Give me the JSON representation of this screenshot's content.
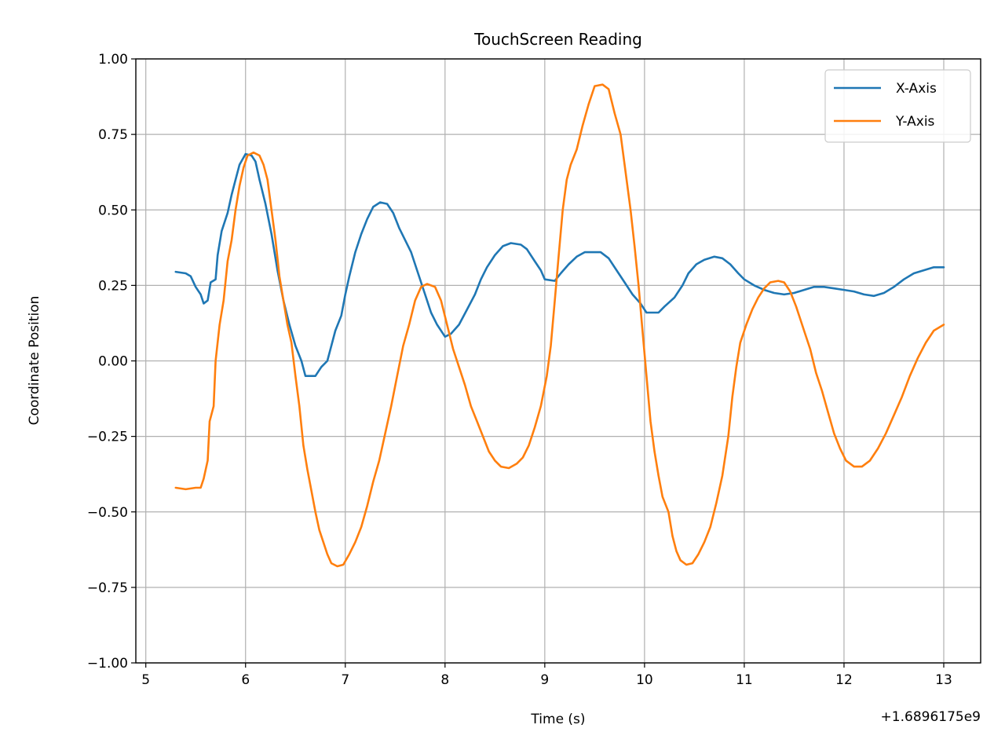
{
  "chart_data": {
    "type": "line",
    "title": "TouchScreen Reading",
    "xlabel": "Time (s)",
    "ylabel": "Coordinate Position",
    "x_offset_label": "+1.6896175e9",
    "xlim": [
      4.9,
      13.37
    ],
    "ylim": [
      -1.0,
      1.0
    ],
    "x_ticks": [
      5,
      6,
      7,
      8,
      9,
      10,
      11,
      12,
      13
    ],
    "x_tick_labels": [
      "5",
      "6",
      "7",
      "8",
      "9",
      "10",
      "11",
      "12",
      "13"
    ],
    "y_ticks": [
      -1.0,
      -0.75,
      -0.5,
      -0.25,
      0.0,
      0.25,
      0.5,
      0.75,
      1.0
    ],
    "y_tick_labels": [
      "−1.00",
      "−0.75",
      "−0.50",
      "−0.25",
      "0.00",
      "0.25",
      "0.50",
      "0.75",
      "1.00"
    ],
    "grid": true,
    "legend_position": "top-right",
    "series": [
      {
        "name": "X-Axis",
        "color": "#1f77b4",
        "points": [
          [
            5.3,
            0.295
          ],
          [
            5.4,
            0.29
          ],
          [
            5.45,
            0.28
          ],
          [
            5.5,
            0.245
          ],
          [
            5.55,
            0.22
          ],
          [
            5.58,
            0.19
          ],
          [
            5.62,
            0.2
          ],
          [
            5.65,
            0.26
          ],
          [
            5.7,
            0.27
          ],
          [
            5.72,
            0.35
          ],
          [
            5.76,
            0.43
          ],
          [
            5.82,
            0.49
          ],
          [
            5.86,
            0.55
          ],
          [
            5.9,
            0.6
          ],
          [
            5.94,
            0.65
          ],
          [
            6.0,
            0.685
          ],
          [
            6.06,
            0.68
          ],
          [
            6.1,
            0.66
          ],
          [
            6.14,
            0.6
          ],
          [
            6.2,
            0.52
          ],
          [
            6.26,
            0.42
          ],
          [
            6.32,
            0.3
          ],
          [
            6.38,
            0.2
          ],
          [
            6.44,
            0.12
          ],
          [
            6.5,
            0.05
          ],
          [
            6.56,
            0.0
          ],
          [
            6.6,
            -0.05
          ],
          [
            6.7,
            -0.05
          ],
          [
            6.76,
            -0.02
          ],
          [
            6.82,
            0.0
          ],
          [
            6.86,
            0.05
          ],
          [
            6.9,
            0.1
          ],
          [
            6.96,
            0.15
          ],
          [
            7.0,
            0.22
          ],
          [
            7.04,
            0.28
          ],
          [
            7.1,
            0.36
          ],
          [
            7.16,
            0.42
          ],
          [
            7.22,
            0.47
          ],
          [
            7.28,
            0.51
          ],
          [
            7.35,
            0.525
          ],
          [
            7.42,
            0.52
          ],
          [
            7.48,
            0.49
          ],
          [
            7.54,
            0.44
          ],
          [
            7.6,
            0.4
          ],
          [
            7.66,
            0.36
          ],
          [
            7.72,
            0.3
          ],
          [
            7.8,
            0.22
          ],
          [
            7.86,
            0.16
          ],
          [
            7.92,
            0.12
          ],
          [
            8.0,
            0.08
          ],
          [
            8.06,
            0.09
          ],
          [
            8.14,
            0.12
          ],
          [
            8.22,
            0.17
          ],
          [
            8.3,
            0.22
          ],
          [
            8.36,
            0.27
          ],
          [
            8.42,
            0.31
          ],
          [
            8.5,
            0.35
          ],
          [
            8.58,
            0.38
          ],
          [
            8.66,
            0.39
          ],
          [
            8.76,
            0.385
          ],
          [
            8.82,
            0.37
          ],
          [
            8.9,
            0.33
          ],
          [
            8.96,
            0.3
          ],
          [
            9.0,
            0.27
          ],
          [
            9.1,
            0.265
          ],
          [
            9.16,
            0.29
          ],
          [
            9.24,
            0.32
          ],
          [
            9.32,
            0.345
          ],
          [
            9.4,
            0.36
          ],
          [
            9.56,
            0.36
          ],
          [
            9.64,
            0.34
          ],
          [
            9.72,
            0.3
          ],
          [
            9.8,
            0.26
          ],
          [
            9.88,
            0.22
          ],
          [
            9.96,
            0.19
          ],
          [
            10.02,
            0.16
          ],
          [
            10.14,
            0.16
          ],
          [
            10.2,
            0.18
          ],
          [
            10.3,
            0.21
          ],
          [
            10.38,
            0.25
          ],
          [
            10.44,
            0.29
          ],
          [
            10.52,
            0.32
          ],
          [
            10.6,
            0.335
          ],
          [
            10.7,
            0.345
          ],
          [
            10.78,
            0.34
          ],
          [
            10.86,
            0.32
          ],
          [
            10.94,
            0.29
          ],
          [
            11.0,
            0.27
          ],
          [
            11.1,
            0.25
          ],
          [
            11.2,
            0.235
          ],
          [
            11.3,
            0.225
          ],
          [
            11.4,
            0.22
          ],
          [
            11.5,
            0.225
          ],
          [
            11.6,
            0.235
          ],
          [
            11.7,
            0.245
          ],
          [
            11.8,
            0.245
          ],
          [
            11.9,
            0.24
          ],
          [
            12.0,
            0.235
          ],
          [
            12.1,
            0.23
          ],
          [
            12.2,
            0.22
          ],
          [
            12.3,
            0.215
          ],
          [
            12.4,
            0.225
          ],
          [
            12.5,
            0.245
          ],
          [
            12.6,
            0.27
          ],
          [
            12.7,
            0.29
          ],
          [
            12.8,
            0.3
          ],
          [
            12.9,
            0.31
          ],
          [
            13.0,
            0.31
          ]
        ]
      },
      {
        "name": "Y-Axis",
        "color": "#ff7f0e",
        "points": [
          [
            5.3,
            -0.42
          ],
          [
            5.4,
            -0.425
          ],
          [
            5.5,
            -0.42
          ],
          [
            5.55,
            -0.42
          ],
          [
            5.58,
            -0.39
          ],
          [
            5.62,
            -0.33
          ],
          [
            5.64,
            -0.2
          ],
          [
            5.68,
            -0.15
          ],
          [
            5.7,
            0.0
          ],
          [
            5.74,
            0.12
          ],
          [
            5.78,
            0.2
          ],
          [
            5.82,
            0.33
          ],
          [
            5.86,
            0.4
          ],
          [
            5.9,
            0.5
          ],
          [
            5.94,
            0.58
          ],
          [
            5.98,
            0.64
          ],
          [
            6.02,
            0.68
          ],
          [
            6.08,
            0.69
          ],
          [
            6.14,
            0.68
          ],
          [
            6.18,
            0.65
          ],
          [
            6.22,
            0.6
          ],
          [
            6.26,
            0.5
          ],
          [
            6.3,
            0.4
          ],
          [
            6.34,
            0.28
          ],
          [
            6.38,
            0.2
          ],
          [
            6.42,
            0.12
          ],
          [
            6.46,
            0.06
          ],
          [
            6.5,
            -0.05
          ],
          [
            6.54,
            -0.15
          ],
          [
            6.58,
            -0.28
          ],
          [
            6.62,
            -0.36
          ],
          [
            6.66,
            -0.43
          ],
          [
            6.7,
            -0.5
          ],
          [
            6.74,
            -0.56
          ],
          [
            6.78,
            -0.6
          ],
          [
            6.82,
            -0.64
          ],
          [
            6.86,
            -0.67
          ],
          [
            6.92,
            -0.68
          ],
          [
            6.98,
            -0.675
          ],
          [
            7.04,
            -0.64
          ],
          [
            7.1,
            -0.6
          ],
          [
            7.16,
            -0.55
          ],
          [
            7.22,
            -0.48
          ],
          [
            7.28,
            -0.4
          ],
          [
            7.34,
            -0.33
          ],
          [
            7.4,
            -0.24
          ],
          [
            7.46,
            -0.15
          ],
          [
            7.52,
            -0.05
          ],
          [
            7.58,
            0.05
          ],
          [
            7.64,
            0.12
          ],
          [
            7.7,
            0.2
          ],
          [
            7.76,
            0.245
          ],
          [
            7.82,
            0.255
          ],
          [
            7.9,
            0.245
          ],
          [
            7.96,
            0.2
          ],
          [
            8.02,
            0.12
          ],
          [
            8.08,
            0.04
          ],
          [
            8.14,
            -0.02
          ],
          [
            8.2,
            -0.08
          ],
          [
            8.26,
            -0.15
          ],
          [
            8.32,
            -0.2
          ],
          [
            8.38,
            -0.25
          ],
          [
            8.44,
            -0.3
          ],
          [
            8.5,
            -0.33
          ],
          [
            8.56,
            -0.35
          ],
          [
            8.64,
            -0.355
          ],
          [
            8.72,
            -0.34
          ],
          [
            8.78,
            -0.32
          ],
          [
            8.84,
            -0.28
          ],
          [
            8.9,
            -0.22
          ],
          [
            8.96,
            -0.15
          ],
          [
            9.02,
            -0.05
          ],
          [
            9.06,
            0.05
          ],
          [
            9.1,
            0.2
          ],
          [
            9.14,
            0.35
          ],
          [
            9.18,
            0.5
          ],
          [
            9.22,
            0.6
          ],
          [
            9.26,
            0.65
          ],
          [
            9.32,
            0.7
          ],
          [
            9.38,
            0.78
          ],
          [
            9.44,
            0.85
          ],
          [
            9.5,
            0.91
          ],
          [
            9.58,
            0.915
          ],
          [
            9.64,
            0.9
          ],
          [
            9.7,
            0.82
          ],
          [
            9.76,
            0.75
          ],
          [
            9.8,
            0.65
          ],
          [
            9.86,
            0.5
          ],
          [
            9.9,
            0.38
          ],
          [
            9.94,
            0.25
          ],
          [
            9.98,
            0.1
          ],
          [
            10.02,
            -0.05
          ],
          [
            10.06,
            -0.2
          ],
          [
            10.1,
            -0.3
          ],
          [
            10.14,
            -0.38
          ],
          [
            10.18,
            -0.45
          ],
          [
            10.24,
            -0.5
          ],
          [
            10.28,
            -0.58
          ],
          [
            10.32,
            -0.63
          ],
          [
            10.36,
            -0.66
          ],
          [
            10.42,
            -0.675
          ],
          [
            10.48,
            -0.67
          ],
          [
            10.54,
            -0.64
          ],
          [
            10.6,
            -0.6
          ],
          [
            10.66,
            -0.55
          ],
          [
            10.72,
            -0.47
          ],
          [
            10.78,
            -0.38
          ],
          [
            10.84,
            -0.25
          ],
          [
            10.88,
            -0.12
          ],
          [
            10.92,
            -0.02
          ],
          [
            10.96,
            0.06
          ],
          [
            11.02,
            0.12
          ],
          [
            11.08,
            0.17
          ],
          [
            11.14,
            0.21
          ],
          [
            11.2,
            0.24
          ],
          [
            11.26,
            0.26
          ],
          [
            11.34,
            0.265
          ],
          [
            11.4,
            0.26
          ],
          [
            11.46,
            0.23
          ],
          [
            11.52,
            0.18
          ],
          [
            11.6,
            0.1
          ],
          [
            11.66,
            0.04
          ],
          [
            11.72,
            -0.04
          ],
          [
            11.78,
            -0.1
          ],
          [
            11.84,
            -0.17
          ],
          [
            11.9,
            -0.24
          ],
          [
            11.96,
            -0.29
          ],
          [
            12.02,
            -0.33
          ],
          [
            12.1,
            -0.35
          ],
          [
            12.18,
            -0.35
          ],
          [
            12.26,
            -0.33
          ],
          [
            12.34,
            -0.29
          ],
          [
            12.42,
            -0.24
          ],
          [
            12.5,
            -0.18
          ],
          [
            12.58,
            -0.12
          ],
          [
            12.66,
            -0.05
          ],
          [
            12.74,
            0.01
          ],
          [
            12.82,
            0.06
          ],
          [
            12.9,
            0.1
          ],
          [
            13.0,
            0.12
          ]
        ]
      }
    ]
  }
}
